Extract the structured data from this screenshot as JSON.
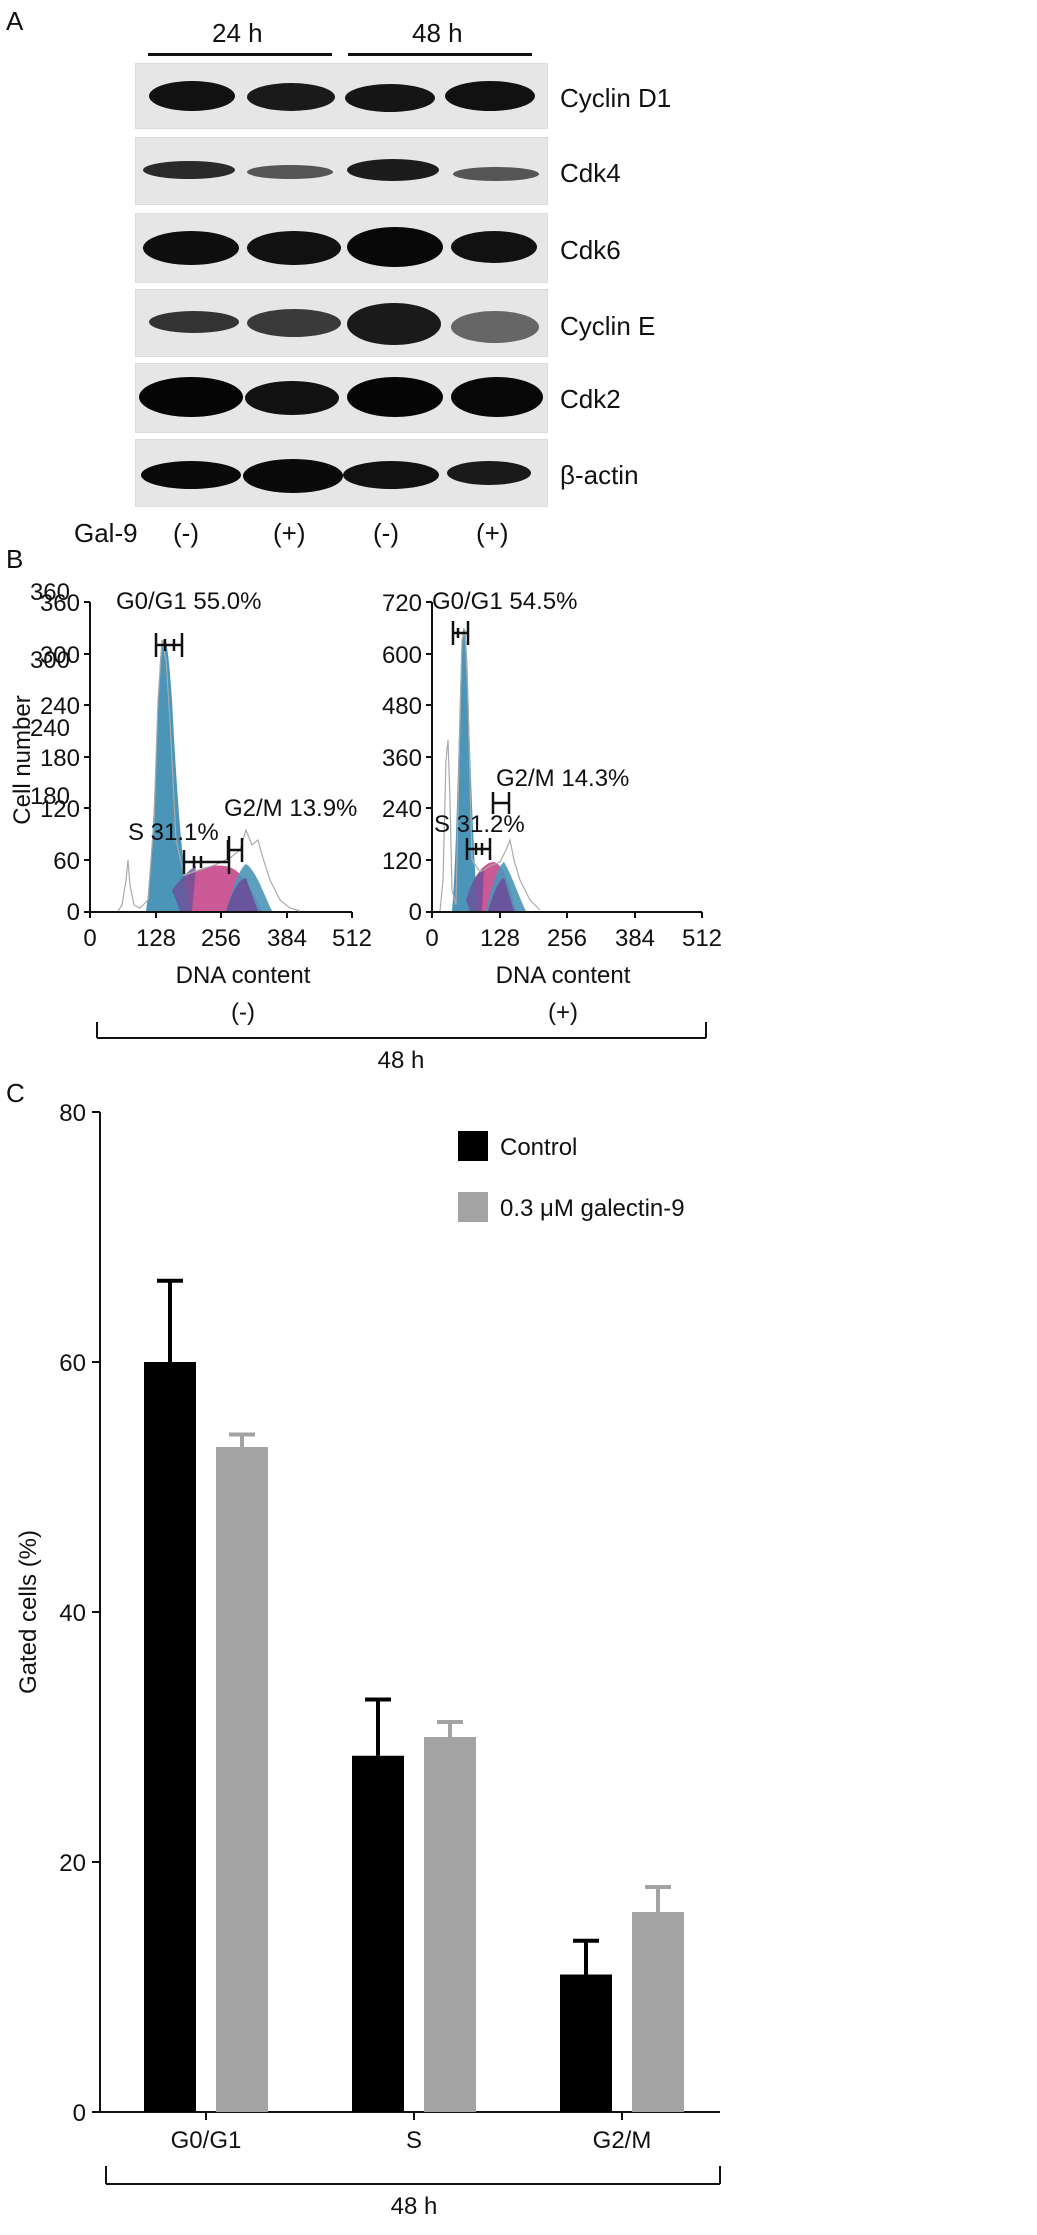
{
  "panels": {
    "a": "A",
    "b": "B",
    "c": "C"
  },
  "blot": {
    "time_labels": [
      "24 h",
      "48 h"
    ],
    "proteins": [
      "Cyclin D1",
      "Cdk4",
      "Cdk6",
      "Cyclin E",
      "Cdk2",
      "β-actin"
    ],
    "treatment_row_label": "Gal-9",
    "lane_signs": [
      "(-)",
      "(+)",
      "(-)",
      "(+)"
    ]
  },
  "flow": [
    {
      "ylabel": "Cell number",
      "xlabel": "DNA content",
      "condition": "(-)",
      "yticks": [
        "0",
        "60",
        "120",
        "180",
        "240",
        "300",
        "360"
      ],
      "xticks": [
        "0",
        "128",
        "256",
        "384",
        "512"
      ],
      "g0g1_label": "G0/G1 55.0%",
      "s_label": "S 31.1%",
      "g2m_label": "G2/M 13.9%"
    },
    {
      "ylabel": "",
      "xlabel": "DNA content",
      "condition": "(+)",
      "yticks": [
        "0",
        "120",
        "240",
        "360",
        "480",
        "600",
        "720"
      ],
      "xticks": [
        "0",
        "128",
        "256",
        "384",
        "512"
      ],
      "g0g1_label": "G0/G1 54.5%",
      "s_label": "S 31.2%",
      "g2m_label": "G2/M 14.3%"
    }
  ],
  "flow_time": "48 h",
  "colors": {
    "g0g1": "#4b95b8",
    "s": "#c8508f",
    "g2m": "#4b95b8",
    "overlap": "#6a4f9a",
    "control": "#000000",
    "galectin": "#a3a3a3"
  },
  "chart_data": {
    "type": "bar",
    "categories": [
      "G0/G1",
      "S",
      "G2/M"
    ],
    "series": [
      {
        "name": "Control",
        "values": [
          60.0,
          28.5,
          11.0
        ],
        "errors": [
          6.5,
          4.5,
          2.7
        ]
      },
      {
        "name": "0.3 μM galectin-9",
        "values": [
          53.2,
          30.0,
          16.0
        ],
        "errors": [
          1.0,
          1.2,
          2.0
        ]
      }
    ],
    "ylabel": "Gated cells (%)",
    "xlabel": "48 h",
    "ylim": [
      0,
      80
    ],
    "yticks": [
      0,
      20,
      40,
      60,
      80
    ],
    "legend_position": "top-right",
    "grid": false
  }
}
